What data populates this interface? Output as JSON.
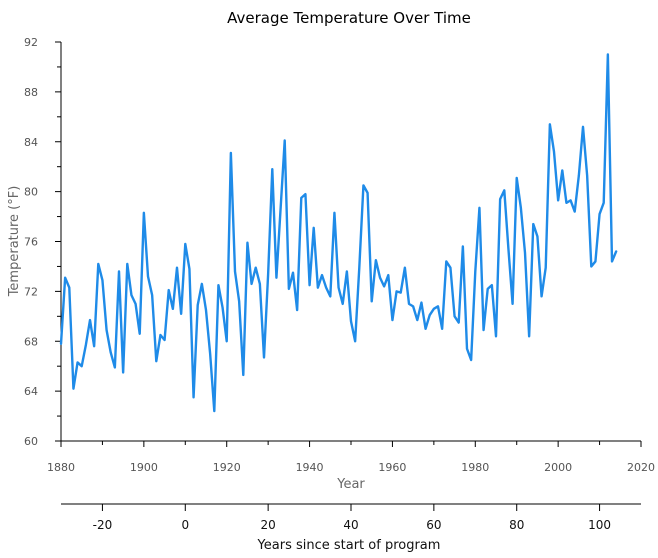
{
  "chart_data": {
    "type": "line",
    "title": "Average Temperature Over Time",
    "xlabel": "Year",
    "ylabel": "Temperature (°F)",
    "secondary_xlabel": "Years since start of program",
    "xlim": [
      1880,
      2020
    ],
    "ylim": [
      60,
      92
    ],
    "xticks": [
      1880,
      1900,
      1920,
      1940,
      1960,
      1980,
      2000,
      2020
    ],
    "yticks": [
      60,
      64,
      68,
      72,
      76,
      80,
      84,
      88,
      92
    ],
    "secondary_xticks": [
      -20,
      0,
      20,
      40,
      60,
      80,
      100
    ],
    "secondary_xlim": [
      -30,
      110
    ],
    "grid": false,
    "line_color": "#1f8be8",
    "series": [
      {
        "x": [
          1880,
          1881,
          1882,
          1883,
          1884,
          1885,
          1886,
          1887,
          1888,
          1889,
          1890,
          1891,
          1892,
          1893,
          1894,
          1895,
          1896,
          1897,
          1898,
          1899,
          1900,
          1901,
          1902,
          1903,
          1904,
          1905,
          1906,
          1907,
          1908,
          1909,
          1910,
          1911,
          1912,
          1913,
          1914,
          1915,
          1916,
          1917,
          1918,
          1919,
          1920,
          1921,
          1922,
          1923,
          1924,
          1925,
          1926,
          1927,
          1928,
          1929,
          1930,
          1931,
          1932,
          1933,
          1934,
          1935,
          1936,
          1937,
          1938,
          1939,
          1940,
          1941,
          1942,
          1943,
          1944,
          1945,
          1946,
          1947,
          1948,
          1949,
          1950,
          1951,
          1952,
          1953,
          1954,
          1955,
          1956,
          1957,
          1958,
          1959,
          1960,
          1961,
          1962,
          1963,
          1964,
          1965,
          1966,
          1967,
          1968,
          1969,
          1970,
          1971,
          1972,
          1973,
          1974,
          1975,
          1976,
          1977,
          1978,
          1979,
          1980,
          1981,
          1982,
          1983,
          1984,
          1985,
          1986,
          1987,
          1988,
          1989,
          1990,
          1991,
          1992,
          1993,
          1994,
          1995,
          1996,
          1997,
          1998,
          1999,
          2000,
          2001,
          2002,
          2003,
          2004,
          2005,
          2006,
          2007,
          2008,
          2009,
          2010,
          2011,
          2012,
          2013,
          2014
        ],
        "y": [
          67.8,
          73.1,
          72.3,
          64.2,
          66.3,
          66.0,
          67.7,
          69.7,
          67.6,
          74.2,
          72.9,
          68.9,
          67.1,
          65.9,
          73.6,
          65.5,
          74.2,
          71.7,
          71.0,
          68.6,
          78.3,
          73.2,
          71.7,
          66.4,
          68.5,
          68.1,
          72.1,
          70.6,
          73.9,
          70.2,
          75.8,
          73.8,
          63.5,
          70.9,
          72.6,
          70.5,
          67.0,
          62.4,
          72.5,
          70.7,
          68.0,
          83.1,
          73.6,
          71.2,
          65.3,
          75.9,
          72.6,
          73.9,
          72.6,
          66.7,
          73.4,
          81.8,
          73.1,
          78.6,
          84.1,
          72.2,
          73.5,
          70.5,
          79.5,
          79.8,
          72.5,
          77.1,
          72.3,
          73.3,
          72.3,
          71.6,
          78.3,
          72.3,
          71.0,
          73.6,
          69.6,
          68.0,
          73.9,
          80.5,
          79.9,
          71.2,
          74.5,
          73.1,
          72.4,
          73.3,
          69.7,
          72.0,
          71.9,
          73.9,
          71.0,
          70.8,
          69.7,
          71.1,
          69.0,
          70.1,
          70.6,
          70.8,
          69.0,
          74.4,
          73.9,
          70.0,
          69.5,
          75.6,
          67.4,
          66.5,
          73.6,
          78.7,
          68.9,
          72.2,
          72.5,
          68.4,
          79.4,
          80.1,
          75.4,
          71.0,
          81.1,
          78.7,
          75.1,
          68.4,
          77.4,
          76.4,
          71.6,
          73.9,
          85.4,
          83.2,
          79.3,
          81.7,
          79.1,
          79.3,
          78.4,
          81.3,
          85.2,
          81.3,
          74.0,
          74.4,
          78.2,
          79.1,
          91.0,
          74.4,
          75.2
        ]
      }
    ]
  }
}
